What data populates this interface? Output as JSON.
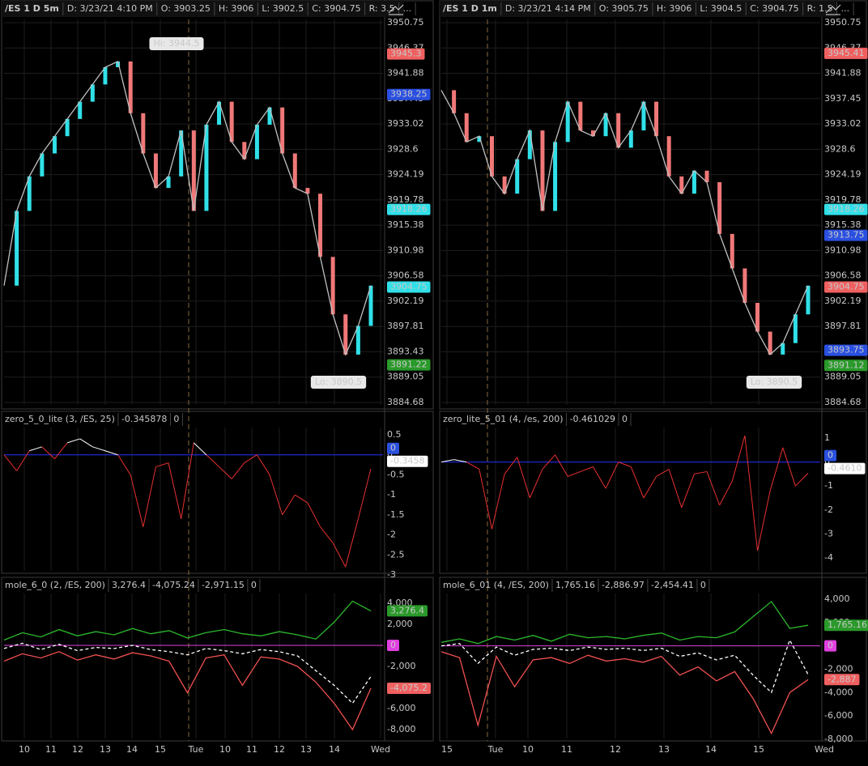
{
  "panels": [
    {
      "header": {
        "symbol": "/ES 1 D 5m",
        "date": "D: 3/23/21 4:10 PM",
        "open": "O: 3903.25",
        "high": "H: 3906",
        "low": "L: 3902.5",
        "close": "C: 3904.75",
        "range": "R: 3.5",
        "more": "..."
      },
      "price": {
        "ticks": [
          "3950.75",
          "3946.37",
          "3941.88",
          "3937.45",
          "3933.02",
          "3928.6",
          "3924.19",
          "3919.78",
          "3915.38",
          "3910.98",
          "3906.58",
          "3902.19",
          "3897.81",
          "3893.43",
          "3889.05",
          "3884.68"
        ],
        "badges": [
          {
            "text": "3945.3",
            "color": "#f06060"
          },
          {
            "text": "3938.25",
            "color": "#2a50e0"
          },
          {
            "text": "3918.26",
            "color": "#30e0e8"
          },
          {
            "text": "3904.75",
            "color": "#30e0e8"
          },
          {
            "text": "3891.22",
            "color": "#2a9a2a"
          }
        ],
        "hi": "Hi: 3944.5",
        "lo": "Lo: 3890.5",
        "values": [
          3905,
          3918,
          3924,
          3928,
          3931,
          3934,
          3937,
          3940,
          3943,
          3944,
          3935,
          3928,
          3922,
          3924,
          3932,
          3918,
          3933,
          3937,
          3930,
          3927,
          3933,
          3936,
          3928,
          3922,
          3921,
          3910,
          3900,
          3893,
          3898,
          3905
        ]
      },
      "study1": {
        "name": "zero_5_0_lite (3, /ES, 25)",
        "value": "-0.345878",
        "zero": "0",
        "ticks": [
          "0.5",
          "0",
          "-0.5",
          "-1",
          "-1.5",
          "-2",
          "-2.5",
          "-3"
        ],
        "badges": [
          {
            "text": "0",
            "color": "#2a50e0"
          },
          {
            "text": "-0.3458",
            "color": "#ffffff"
          }
        ],
        "values": [
          0,
          -0.4,
          0.1,
          0.2,
          -0.1,
          0.3,
          0.4,
          0.2,
          0.1,
          0,
          -0.5,
          -1.8,
          -0.3,
          -0.2,
          -1.6,
          0.3,
          0,
          -0.3,
          -0.6,
          -0.2,
          0,
          -0.5,
          -1.5,
          -1,
          -1.2,
          -1.8,
          -2.2,
          -2.8,
          -1.6,
          -0.35
        ]
      },
      "study2": {
        "name": "mole_6_0 (2, /ES, 200)",
        "up": "3,276.4",
        "down": "-4,075.24",
        "mid": "-2,971.15",
        "zero": "0",
        "ticks": [
          "4,000",
          "2,000",
          "0",
          "-2,000",
          "-4,000",
          "-6,000",
          "-8,000"
        ],
        "badges": [
          {
            "text": "3,276.4",
            "color": "#2a9a2a"
          },
          {
            "text": "0",
            "color": "#e040e0"
          },
          {
            "text": "-4,075.2",
            "color": "#f06060"
          }
        ],
        "green": [
          500,
          1200,
          800,
          1500,
          900,
          1300,
          1000,
          1600,
          1100,
          1400,
          700,
          1200,
          1500,
          1100,
          900,
          1300,
          1000,
          600,
          2200,
          4200,
          3276
        ],
        "red": [
          -1500,
          -800,
          -1200,
          -600,
          -1400,
          -900,
          -1300,
          -700,
          -1000,
          -1500,
          -4500,
          -1200,
          -900,
          -3800,
          -1100,
          -1300,
          -2000,
          -3500,
          -5500,
          -8000,
          -4075
        ],
        "white": [
          -300,
          200,
          -400,
          100,
          -500,
          -200,
          -300,
          0,
          -400,
          -600,
          -900,
          -300,
          -500,
          -800,
          -400,
          -600,
          -1000,
          -2400,
          -3800,
          -5500,
          -2971
        ]
      },
      "xlabels": [
        "10",
        "11",
        "12",
        "13",
        "14",
        "15",
        "Tue",
        "10",
        "11",
        "12",
        "13",
        "14",
        "Wed"
      ]
    },
    {
      "header": {
        "symbol": "/ES 1 D 1m",
        "date": "D: 3/23/21 4:14 PM",
        "open": "O: 3905.75",
        "high": "H: 3906",
        "low": "L: 3904.5",
        "close": "C: 3904.75",
        "range": "R: 1.5",
        "more": "..."
      },
      "price": {
        "ticks": [
          "3950.75",
          "3946.37",
          "3941.88",
          "3937.45",
          "3933.02",
          "3928.6",
          "3924.19",
          "3919.78",
          "3915.38",
          "3910.98",
          "3906.58",
          "3902.19",
          "3897.81",
          "3893.43",
          "3889.05",
          "3884.68"
        ],
        "badges": [
          {
            "text": "3945.41",
            "color": "#f06060"
          },
          {
            "text": "3918.26",
            "color": "#30e0e8"
          },
          {
            "text": "3913.75",
            "color": "#2a50e0"
          },
          {
            "text": "3904.75",
            "color": "#f06060"
          },
          {
            "text": "3893.75",
            "color": "#2a50e0"
          },
          {
            "text": "3891.12",
            "color": "#2a9a2a"
          }
        ],
        "hi": "",
        "lo": "Lo: 3890.5",
        "values": [
          3939,
          3935,
          3930,
          3931,
          3924,
          3921,
          3927,
          3932,
          3918,
          3930,
          3937,
          3932,
          3931,
          3935,
          3929,
          3932,
          3937,
          3931,
          3924,
          3921,
          3925,
          3923,
          3914,
          3908,
          3902,
          3897,
          3893,
          3895,
          3900,
          3905
        ]
      },
      "study1": {
        "name": "zero_lite_5_01 (4, /es, 200)",
        "value": "-0.461029",
        "zero": "0",
        "ticks": [
          "1",
          "0",
          "-1",
          "-2",
          "-3",
          "-4"
        ],
        "badges": [
          {
            "text": "0",
            "color": "#2a50e0"
          },
          {
            "text": "-0.4610",
            "color": "#ffffff"
          }
        ],
        "values": [
          0,
          0.1,
          0,
          -0.3,
          -2.8,
          -0.5,
          0.2,
          -1.5,
          -0.3,
          0.3,
          -0.6,
          -0.4,
          -0.2,
          -1.1,
          0,
          -0.2,
          -1.5,
          -0.6,
          -0.3,
          -1.9,
          -0.5,
          -0.4,
          -1.8,
          -0.8,
          1.1,
          -3.7,
          -1.2,
          0.6,
          -1,
          -0.46
        ]
      },
      "study2": {
        "name": "mole_6_01 (4, /ES, 200)",
        "up": "1,765.16",
        "down": "-2,886.97",
        "mid": "-2,454.41",
        "zero": "0",
        "ticks": [
          "4,000",
          "2,000",
          "0",
          "-2,000",
          "-4,000",
          "-6,000",
          "-8,000"
        ],
        "badges": [
          {
            "text": "1,765.16",
            "color": "#2a9a2a"
          },
          {
            "text": "0",
            "color": "#e040e0"
          },
          {
            "text": "-2,887",
            "color": "#f06060"
          }
        ],
        "green": [
          300,
          600,
          200,
          800,
          500,
          900,
          400,
          1000,
          700,
          800,
          600,
          900,
          1100,
          500,
          800,
          700,
          1200,
          2500,
          3800,
          1500,
          1765
        ],
        "red": [
          -500,
          -1000,
          -6800,
          -900,
          -3500,
          -1200,
          -1000,
          -1500,
          -800,
          -1300,
          -1100,
          -1400,
          -900,
          -2500,
          -1800,
          -3000,
          -2200,
          -4500,
          -7500,
          -4000,
          -2887
        ],
        "white": [
          0,
          200,
          -1500,
          -100,
          -800,
          -300,
          -200,
          -400,
          -100,
          -300,
          -200,
          -400,
          -200,
          -900,
          -600,
          -1200,
          -800,
          -2500,
          -4000,
          500,
          -2454
        ]
      },
      "xlabels": [
        "15",
        "Tue",
        "10",
        "11",
        "12",
        "13",
        "14",
        "15",
        "Wed"
      ]
    }
  ]
}
